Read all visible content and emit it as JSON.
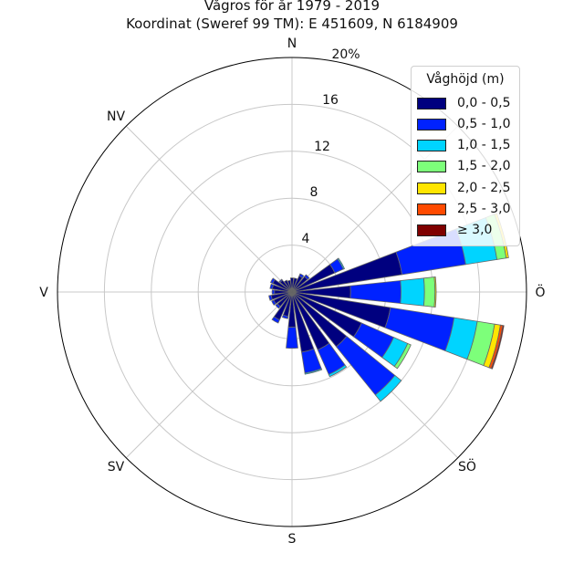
{
  "title": {
    "line1": "Vågros för år 1979 - 2019",
    "line2": "Koordinat (Sweref 99 TM): E 451609, N 6184909"
  },
  "directions": [
    "N",
    "NV",
    "V",
    "SV",
    "S",
    "SÖ",
    "Ö"
  ],
  "radial_ticks": [
    "4",
    "8",
    "12",
    "16",
    "20%"
  ],
  "legend": {
    "title": "Våghöjd (m)",
    "items": [
      {
        "label": "0,0 - 0,5",
        "color": "#00007f"
      },
      {
        "label": "0,5 - 1,0",
        "color": "#0022ff"
      },
      {
        "label": "1,0 - 1,5",
        "color": "#00d4ff"
      },
      {
        "label": "1,5 - 2,0",
        "color": "#7dff7a"
      },
      {
        "label": "2,0 - 2,5",
        "color": "#ffe500"
      },
      {
        "label": "2,5 - 3,0",
        "color": "#ff4a00"
      },
      {
        "label": "≥ 3,0",
        "color": "#7f0000"
      }
    ]
  },
  "chart_data": {
    "type": "windrose",
    "rmax": 20,
    "radial_ticks": [
      4,
      8,
      12,
      16,
      20
    ],
    "bin_width_deg": 15,
    "series_names": [
      "0,0 - 0,5",
      "0,5 - 1,0",
      "1,0 - 1,5",
      "1,5 - 2,0",
      "2,0 - 2,5",
      "2,5 - 3,0",
      "≥ 3,0"
    ],
    "sectors": [
      {
        "dir": 0,
        "values": [
          1.2,
          0,
          0,
          0,
          0,
          0,
          0
        ]
      },
      {
        "dir": 15,
        "values": [
          1.2,
          0,
          0,
          0,
          0,
          0,
          0
        ]
      },
      {
        "dir": 30,
        "values": [
          1.5,
          0.2,
          0,
          0,
          0,
          0,
          0
        ]
      },
      {
        "dir": 45,
        "values": [
          1.7,
          0.2,
          0,
          0,
          0,
          0,
          0
        ]
      },
      {
        "dir": 60,
        "values": [
          4.0,
          0.8,
          0.1,
          0,
          0,
          0,
          0
        ]
      },
      {
        "dir": 75,
        "values": [
          9.5,
          5.5,
          2.7,
          0.8,
          0.2,
          0,
          0
        ]
      },
      {
        "dir": 90,
        "values": [
          5.0,
          4.3,
          2.0,
          0.9,
          0.1,
          0,
          0
        ]
      },
      {
        "dir": 105,
        "values": [
          8.5,
          5.5,
          2.0,
          1.5,
          0.5,
          0.2,
          0.1
        ]
      },
      {
        "dir": 120,
        "values": [
          6.5,
          3.0,
          1.3,
          0.3,
          0,
          0,
          0
        ]
      },
      {
        "dir": 135,
        "values": [
          6.0,
          5.3,
          0.7,
          0,
          0,
          0,
          0
        ]
      },
      {
        "dir": 150,
        "values": [
          5.4,
          2.3,
          0.2,
          0,
          0,
          0,
          0
        ]
      },
      {
        "dir": 165,
        "values": [
          5.2,
          1.8,
          0.1,
          0,
          0,
          0,
          0
        ]
      },
      {
        "dir": 180,
        "values": [
          3.0,
          1.8,
          0,
          0,
          0,
          0,
          0
        ]
      },
      {
        "dir": 195,
        "values": [
          2.1,
          0.2,
          0,
          0,
          0,
          0,
          0
        ]
      },
      {
        "dir": 210,
        "values": [
          2.6,
          0.3,
          0,
          0,
          0,
          0,
          0
        ]
      },
      {
        "dir": 225,
        "values": [
          1.6,
          0.2,
          0,
          0,
          0,
          0,
          0
        ]
      },
      {
        "dir": 240,
        "values": [
          1.7,
          0.2,
          0,
          0,
          0,
          0,
          0
        ]
      },
      {
        "dir": 255,
        "values": [
          1.8,
          0.2,
          0,
          0,
          0,
          0,
          0
        ]
      },
      {
        "dir": 270,
        "values": [
          1.5,
          0.2,
          0,
          0,
          0,
          0,
          0
        ]
      },
      {
        "dir": 285,
        "values": [
          1.7,
          0.2,
          0,
          0,
          0,
          0,
          0
        ]
      },
      {
        "dir": 300,
        "values": [
          1.8,
          0.2,
          0,
          0,
          0,
          0,
          0
        ]
      },
      {
        "dir": 315,
        "values": [
          1.3,
          0.1,
          0,
          0,
          0,
          0,
          0
        ]
      },
      {
        "dir": 330,
        "values": [
          1.1,
          0,
          0,
          0,
          0,
          0,
          0
        ]
      },
      {
        "dir": 345,
        "values": [
          1.0,
          0,
          0,
          0,
          0,
          0,
          0
        ]
      }
    ]
  }
}
